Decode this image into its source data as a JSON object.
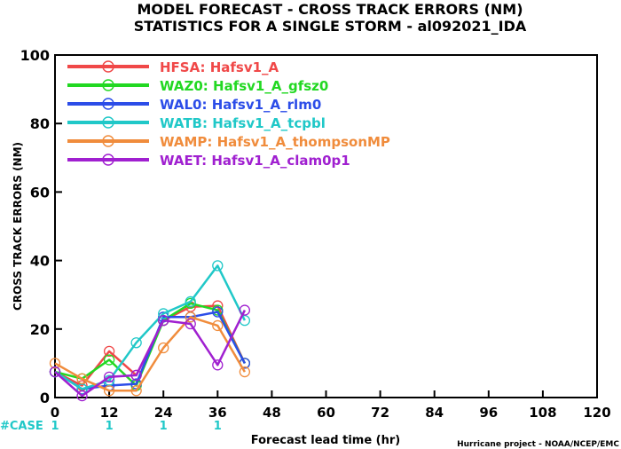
{
  "chart_data": {
    "type": "line",
    "title": "MODEL FORECAST - CROSS TRACK ERRORS (NM)",
    "subtitle": "STATISTICS FOR A SINGLE STORM - al092021_IDA",
    "xlabel": "Forecast lead time (hr)",
    "ylabel": "CROSS TRACK ERRORS (NM)",
    "xlim": [
      0,
      120
    ],
    "ylim": [
      0,
      100
    ],
    "x_ticks": [
      0,
      12,
      24,
      36,
      48,
      60,
      72,
      84,
      96,
      108,
      120
    ],
    "y_ticks": [
      0,
      20,
      40,
      60,
      80,
      100
    ],
    "grid": false,
    "legend_position": "top-left",
    "case_label": "#CASE",
    "case_counts": [
      {
        "x": 0,
        "n": "1"
      },
      {
        "x": 12,
        "n": "1"
      },
      {
        "x": 24,
        "n": "1"
      },
      {
        "x": 36,
        "n": "1"
      }
    ],
    "credit": "Hurricane project - NOAA/NCEP/EMC",
    "series": [
      {
        "name": "HFSA:  Hafsv1_A",
        "color": "#f04848",
        "x": [
          0,
          6,
          12,
          18,
          24,
          30,
          36,
          42
        ],
        "y": [
          7.5,
          3.5,
          13.5,
          6.5,
          22.5,
          26.5,
          26.8,
          10
        ]
      },
      {
        "name": "WAZ0:  Hafsv1_A_gfsz0",
        "color": "#22d822",
        "x": [
          0,
          6,
          12,
          18,
          24,
          30,
          36,
          42
        ],
        "y": [
          7.5,
          5.5,
          11,
          3.5,
          22.5,
          27.5,
          25.5,
          10
        ]
      },
      {
        "name": "WAL0:  Hafsv1_A_rlm0",
        "color": "#2c4de8",
        "x": [
          0,
          6,
          12,
          18,
          24,
          30,
          36,
          42
        ],
        "y": [
          7.5,
          2.5,
          3.5,
          4,
          23.5,
          23.5,
          25,
          10
        ]
      },
      {
        "name": "WATB:  Hafsv1_A_tcpbl",
        "color": "#20c8c8",
        "x": [
          0,
          6,
          12,
          18,
          24,
          30,
          36,
          42
        ],
        "y": [
          7.5,
          2.5,
          5,
          16,
          24.5,
          28,
          38.5,
          22.5
        ]
      },
      {
        "name": "WAMP:  Hafsv1_A_thompsonMP",
        "color": "#f08c3c",
        "x": [
          0,
          6,
          12,
          18,
          24,
          30,
          36,
          42
        ],
        "y": [
          10,
          5.5,
          2,
          2,
          14.5,
          23.5,
          21,
          7.5
        ]
      },
      {
        "name": "WAET:  Hafsv1_A_clam0p1",
        "color": "#a020d0",
        "x": [
          0,
          6,
          12,
          18,
          24,
          30,
          36,
          42
        ],
        "y": [
          7.5,
          0.5,
          6,
          6.5,
          22.5,
          21.5,
          9.5,
          25.5
        ]
      }
    ]
  }
}
